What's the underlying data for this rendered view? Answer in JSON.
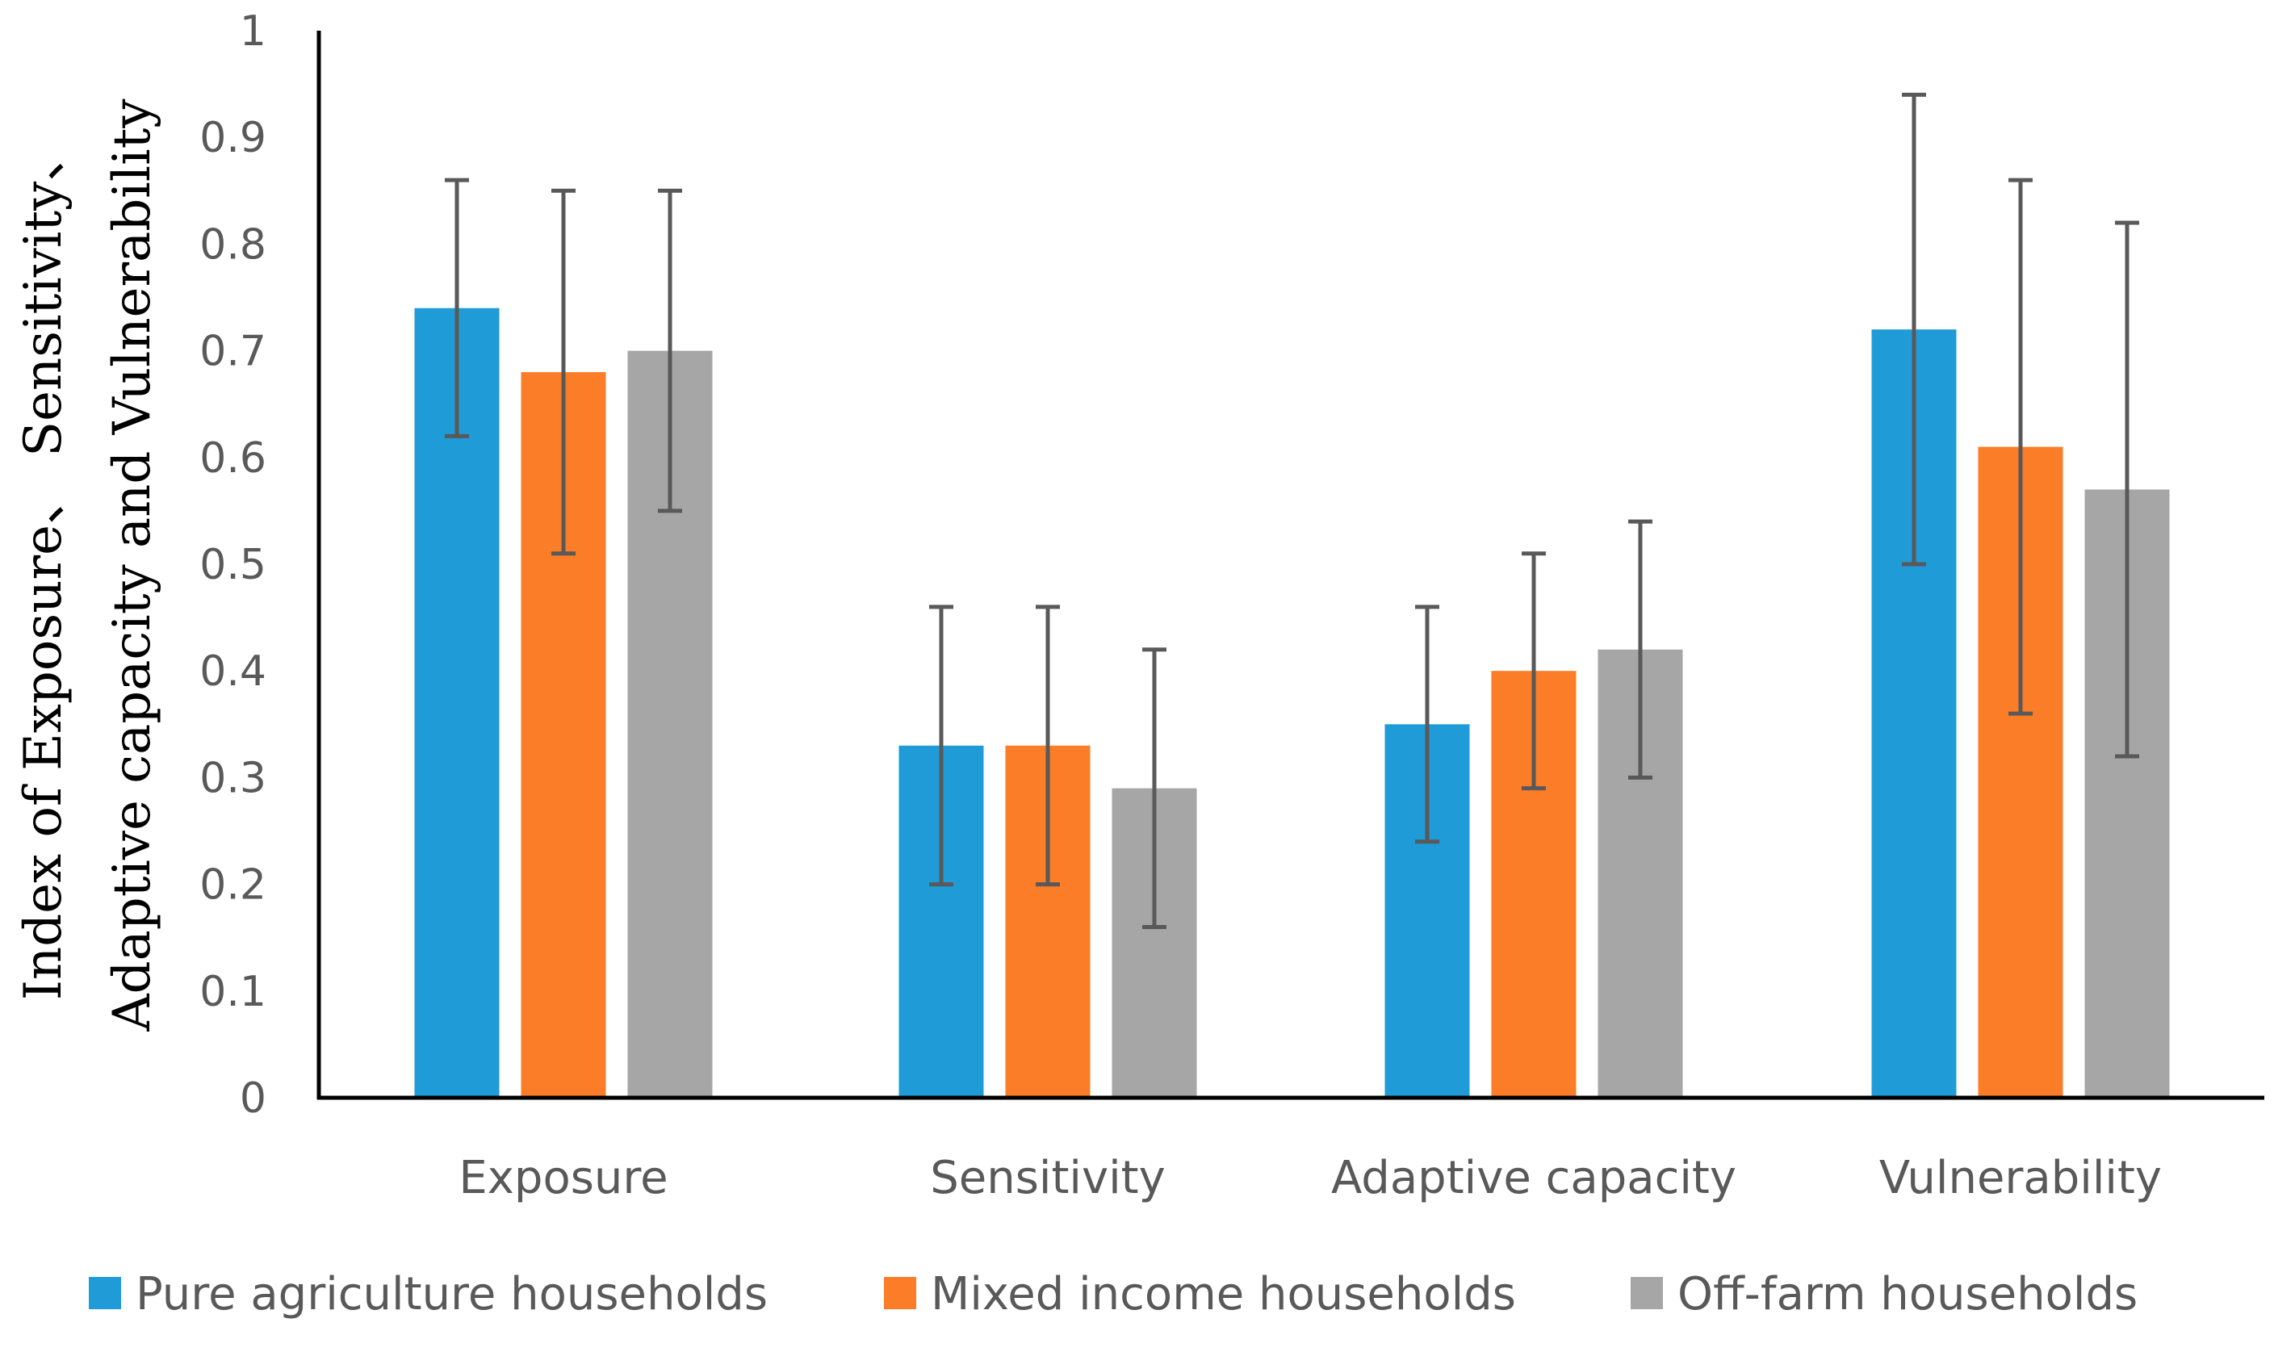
{
  "chart_data": {
    "type": "bar",
    "title": "",
    "xlabel": "",
    "ylabel_lines": [
      "Index of Exposure、 Sensitivity、",
      "Adaptive capacity and Vulnerability"
    ],
    "ylim": [
      0,
      1
    ],
    "yticks": [
      "0",
      "0.1",
      "0.2",
      "0.3",
      "0.4",
      "0.5",
      "0.6",
      "0.7",
      "0.8",
      "0.9",
      "1"
    ],
    "ytick_values": [
      0,
      0.1,
      0.2,
      0.3,
      0.4,
      0.5,
      0.6,
      0.7,
      0.8,
      0.9,
      1
    ],
    "grid": false,
    "legend_position": "bottom",
    "categories": [
      "Exposure",
      "Sensitivity",
      "Adaptive capacity",
      "Vulnerability"
    ],
    "series": [
      {
        "name": "Pure agriculture households",
        "color": "#1f9bd7",
        "values": [
          0.74,
          0.33,
          0.35,
          0.72
        ],
        "error_low": [
          0.62,
          0.2,
          0.24,
          0.5
        ],
        "error_high": [
          0.86,
          0.46,
          0.46,
          0.94
        ]
      },
      {
        "name": "Mixed income households",
        "color": "#fb7d27",
        "values": [
          0.68,
          0.33,
          0.4,
          0.61
        ],
        "error_low": [
          0.51,
          0.2,
          0.29,
          0.36
        ],
        "error_high": [
          0.85,
          0.46,
          0.51,
          0.86
        ]
      },
      {
        "name": "Off-farm households",
        "color": "#a6a6a6",
        "values": [
          0.7,
          0.29,
          0.42,
          0.57
        ],
        "error_low": [
          0.55,
          0.16,
          0.3,
          0.32
        ],
        "error_high": [
          0.85,
          0.42,
          0.54,
          0.82
        ]
      }
    ],
    "error_bar_color": "#595959",
    "axis_color": "#000000"
  }
}
